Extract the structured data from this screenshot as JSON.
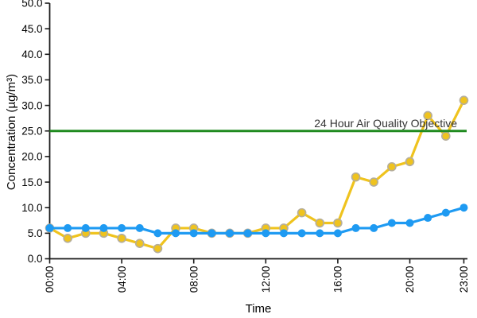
{
  "chart_data": {
    "type": "line",
    "title": "",
    "xlabel": "Time",
    "ylabel": "Concentration (µg/m³)",
    "ylim": [
      0,
      50
    ],
    "ytick_step": 5,
    "ytick_labels": [
      "0.0",
      "5.0",
      "10.0",
      "15.0",
      "20.0",
      "25.0",
      "30.0",
      "35.0",
      "40.0",
      "45.0",
      "50.0"
    ],
    "xticks": [
      {
        "hour": 0,
        "label": "00:00"
      },
      {
        "hour": 4,
        "label": "04:00"
      },
      {
        "hour": 8,
        "label": "08:00"
      },
      {
        "hour": 12,
        "label": "12:00"
      },
      {
        "hour": 16,
        "label": "16:00"
      },
      {
        "hour": 20,
        "label": "20:00"
      },
      {
        "hour": 23,
        "label": "23:00"
      }
    ],
    "x_categories": [
      "00:00",
      "01:00",
      "02:00",
      "03:00",
      "04:00",
      "05:00",
      "06:00",
      "07:00",
      "08:00",
      "09:00",
      "10:00",
      "11:00",
      "12:00",
      "13:00",
      "14:00",
      "15:00",
      "16:00",
      "17:00",
      "18:00",
      "19:00",
      "20:00",
      "21:00",
      "22:00",
      "23:00"
    ],
    "grid": false,
    "legend": "none",
    "series": [
      {
        "name": "yellow-series",
        "color": "#EFC31E",
        "marker_stroke": "#B5AE9C",
        "values": [
          6,
          4,
          5,
          5,
          4,
          3,
          2,
          6,
          6,
          5,
          5,
          5,
          6,
          6,
          9,
          7,
          7,
          16,
          15,
          18,
          19,
          28,
          24,
          31
        ]
      },
      {
        "name": "blue-series",
        "color": "#1E9AF2",
        "marker_stroke": "none",
        "values": [
          6,
          6,
          6,
          6,
          6,
          6,
          5,
          5,
          5,
          5,
          5,
          5,
          5,
          5,
          5,
          5,
          5,
          6,
          6,
          7,
          7,
          8,
          9,
          10
        ]
      }
    ],
    "reference_line": {
      "value": 25,
      "label": "24 Hour Air Quality Objective",
      "color": "#1F8A1F",
      "label_color": "#333333"
    },
    "axis_color": "#1A1A1A"
  }
}
